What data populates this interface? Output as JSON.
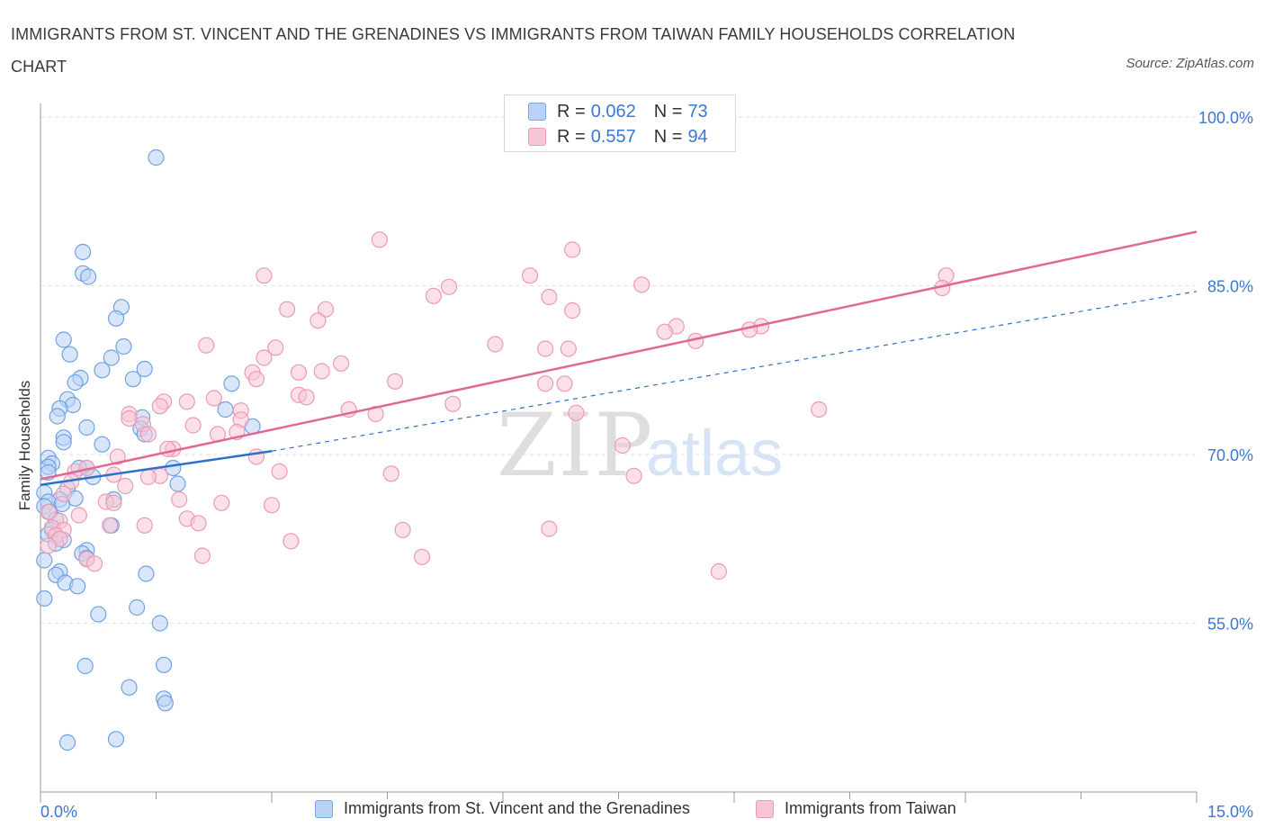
{
  "title": "IMMIGRANTS FROM ST. VINCENT AND THE GRENADINES VS IMMIGRANTS FROM TAIWAN FAMILY HOUSEHOLDS CORRELATION CHART",
  "source": "Source: ZipAtlas.com",
  "watermark": {
    "zip": "ZIP",
    "atlas": "atlas"
  },
  "legend": {
    "r_label": "R =",
    "n_label": "N =",
    "rows": [
      {
        "r": "0.062",
        "n": "73",
        "fill": "#b9d2f5",
        "stroke": "#7aa7e6"
      },
      {
        "r": "0.557",
        "n": "94",
        "fill": "#f7c6d5",
        "stroke": "#eb9ab4"
      }
    ]
  },
  "chart_data": {
    "type": "scatter",
    "title": "IMMIGRANTS FROM ST. VINCENT AND THE GRENADINES VS IMMIGRANTS FROM TAIWAN FAMILY HOUSEHOLDS CORRELATION CHART",
    "xlabel": "",
    "ylabel": "Family Households",
    "xlim": [
      0,
      15
    ],
    "ylim": [
      40,
      102
    ],
    "x_tick_labels": [
      "0.0%",
      "15.0%"
    ],
    "y_ticks": [
      55,
      70,
      85,
      100
    ],
    "y_tick_labels": [
      "55.0%",
      "70.0%",
      "85.0%",
      "100.0%"
    ],
    "grid": true,
    "legend_position": "top-center",
    "series": [
      {
        "name": "Immigrants from St. Vincent and the Grenadines",
        "color": "#6fa1e3",
        "fill": "#b9d2f5",
        "line_color": "#2f6fcc",
        "trend": {
          "solid": [
            [
              0.0,
              67.3
            ],
            [
              3.0,
              70.3
            ]
          ],
          "dashed": [
            [
              3.0,
              70.3
            ],
            [
              15.0,
              84.5
            ]
          ]
        },
        "points": [
          [
            1.5,
            96.4
          ],
          [
            0.55,
            88.0
          ],
          [
            0.55,
            86.1
          ],
          [
            0.62,
            85.8
          ],
          [
            1.05,
            83.1
          ],
          [
            0.98,
            82.1
          ],
          [
            0.3,
            80.2
          ],
          [
            1.08,
            79.6
          ],
          [
            0.38,
            78.9
          ],
          [
            0.92,
            78.6
          ],
          [
            1.35,
            77.6
          ],
          [
            0.8,
            77.5
          ],
          [
            0.52,
            76.8
          ],
          [
            1.2,
            76.7
          ],
          [
            0.45,
            76.4
          ],
          [
            2.48,
            76.3
          ],
          [
            0.35,
            74.9
          ],
          [
            0.42,
            74.4
          ],
          [
            0.25,
            74.1
          ],
          [
            2.4,
            74.0
          ],
          [
            0.22,
            73.4
          ],
          [
            1.32,
            73.3
          ],
          [
            0.6,
            72.4
          ],
          [
            2.75,
            72.5
          ],
          [
            1.3,
            72.3
          ],
          [
            1.35,
            71.8
          ],
          [
            0.3,
            71.5
          ],
          [
            0.3,
            71.1
          ],
          [
            0.8,
            70.9
          ],
          [
            0.1,
            69.7
          ],
          [
            0.15,
            69.2
          ],
          [
            0.1,
            68.9
          ],
          [
            0.6,
            68.8
          ],
          [
            0.5,
            68.8
          ],
          [
            1.72,
            68.8
          ],
          [
            0.1,
            68.4
          ],
          [
            0.68,
            68.0
          ],
          [
            1.78,
            67.4
          ],
          [
            0.35,
            67.0
          ],
          [
            0.05,
            66.6
          ],
          [
            0.45,
            66.1
          ],
          [
            0.25,
            66.0
          ],
          [
            0.1,
            65.8
          ],
          [
            0.95,
            66.0
          ],
          [
            0.28,
            65.6
          ],
          [
            0.05,
            65.4
          ],
          [
            0.12,
            64.9
          ],
          [
            0.2,
            64.2
          ],
          [
            0.92,
            63.7
          ],
          [
            0.15,
            63.3
          ],
          [
            0.1,
            62.9
          ],
          [
            0.3,
            62.4
          ],
          [
            0.2,
            62.1
          ],
          [
            0.6,
            61.5
          ],
          [
            0.54,
            61.2
          ],
          [
            0.6,
            60.8
          ],
          [
            0.05,
            60.6
          ],
          [
            0.25,
            59.6
          ],
          [
            0.2,
            59.3
          ],
          [
            1.37,
            59.4
          ],
          [
            0.32,
            58.6
          ],
          [
            0.48,
            58.3
          ],
          [
            0.05,
            57.2
          ],
          [
            1.25,
            56.4
          ],
          [
            0.75,
            55.8
          ],
          [
            1.55,
            55.0
          ],
          [
            0.58,
            51.2
          ],
          [
            1.6,
            51.3
          ],
          [
            1.15,
            49.3
          ],
          [
            1.6,
            48.3
          ],
          [
            1.62,
            47.9
          ],
          [
            0.98,
            44.7
          ],
          [
            0.35,
            44.4
          ]
        ]
      },
      {
        "name": "Immigrants from Taiwan",
        "color": "#ec9ab3",
        "fill": "#f7c6d5",
        "line_color": "#e06892",
        "trend": {
          "solid": [
            [
              0.0,
              67.8
            ],
            [
              15.0,
              89.8
            ]
          ]
        },
        "points": [
          [
            4.4,
            89.1
          ],
          [
            6.9,
            88.2
          ],
          [
            2.9,
            85.9
          ],
          [
            6.35,
            85.9
          ],
          [
            11.75,
            85.9
          ],
          [
            5.3,
            84.9
          ],
          [
            7.8,
            85.1
          ],
          [
            11.7,
            84.8
          ],
          [
            5.1,
            84.1
          ],
          [
            6.6,
            84.0
          ],
          [
            3.2,
            82.9
          ],
          [
            3.7,
            82.9
          ],
          [
            6.9,
            82.8
          ],
          [
            3.6,
            81.9
          ],
          [
            8.25,
            81.4
          ],
          [
            9.35,
            81.4
          ],
          [
            8.1,
            80.9
          ],
          [
            9.2,
            81.1
          ],
          [
            8.5,
            80.1
          ],
          [
            2.15,
            79.7
          ],
          [
            5.9,
            79.8
          ],
          [
            3.05,
            79.5
          ],
          [
            6.55,
            79.4
          ],
          [
            6.85,
            79.4
          ],
          [
            2.9,
            78.6
          ],
          [
            3.9,
            78.1
          ],
          [
            3.65,
            77.4
          ],
          [
            3.35,
            77.3
          ],
          [
            2.75,
            77.3
          ],
          [
            2.8,
            76.7
          ],
          [
            4.6,
            76.5
          ],
          [
            6.55,
            76.3
          ],
          [
            6.8,
            76.3
          ],
          [
            3.35,
            75.3
          ],
          [
            3.45,
            75.1
          ],
          [
            2.25,
            75.0
          ],
          [
            1.9,
            74.7
          ],
          [
            1.6,
            74.7
          ],
          [
            1.55,
            74.3
          ],
          [
            5.35,
            74.5
          ],
          [
            4.0,
            74.0
          ],
          [
            2.6,
            73.9
          ],
          [
            1.15,
            73.6
          ],
          [
            4.35,
            73.6
          ],
          [
            6.95,
            73.7
          ],
          [
            1.15,
            73.2
          ],
          [
            2.6,
            73.1
          ],
          [
            1.33,
            72.7
          ],
          [
            1.98,
            72.6
          ],
          [
            2.55,
            72.0
          ],
          [
            1.4,
            71.8
          ],
          [
            2.3,
            71.8
          ],
          [
            1.72,
            70.5
          ],
          [
            1.65,
            70.5
          ],
          [
            2.8,
            69.8
          ],
          [
            7.55,
            70.8
          ],
          [
            10.1,
            74.0
          ],
          [
            1.0,
            69.8
          ],
          [
            0.45,
            68.5
          ],
          [
            0.6,
            68.8
          ],
          [
            1.55,
            68.1
          ],
          [
            1.4,
            68.0
          ],
          [
            0.95,
            68.2
          ],
          [
            3.1,
            68.5
          ],
          [
            4.55,
            68.3
          ],
          [
            7.7,
            68.1
          ],
          [
            0.4,
            67.6
          ],
          [
            1.1,
            67.2
          ],
          [
            0.3,
            66.5
          ],
          [
            1.8,
            66.0
          ],
          [
            0.85,
            65.8
          ],
          [
            0.95,
            65.7
          ],
          [
            2.35,
            65.7
          ],
          [
            3.0,
            65.5
          ],
          [
            0.1,
            64.9
          ],
          [
            0.5,
            64.6
          ],
          [
            1.9,
            64.3
          ],
          [
            0.25,
            64.1
          ],
          [
            2.05,
            63.9
          ],
          [
            1.35,
            63.7
          ],
          [
            0.9,
            63.7
          ],
          [
            0.15,
            63.5
          ],
          [
            0.3,
            63.3
          ],
          [
            4.7,
            63.3
          ],
          [
            6.6,
            63.4
          ],
          [
            0.2,
            62.8
          ],
          [
            0.25,
            62.5
          ],
          [
            3.25,
            62.3
          ],
          [
            0.1,
            61.9
          ],
          [
            2.1,
            61.0
          ],
          [
            4.95,
            60.9
          ],
          [
            0.6,
            60.7
          ],
          [
            0.7,
            60.3
          ],
          [
            8.8,
            59.6
          ]
        ]
      }
    ]
  },
  "bottom_legend": [
    {
      "label": "Immigrants from St. Vincent and the Grenadines",
      "fill": "#b9d2f5",
      "stroke": "#7aa7e6"
    },
    {
      "label": "Immigrants from Taiwan",
      "fill": "#f7c6d5",
      "stroke": "#eb9ab4"
    }
  ]
}
